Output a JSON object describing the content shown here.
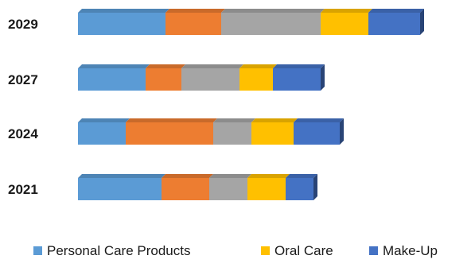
{
  "chart_data": {
    "type": "bar",
    "orientation": "horizontal",
    "stacked": true,
    "style_3d": true,
    "categories": [
      "2029",
      "2027",
      "2024",
      "2021"
    ],
    "series": [
      {
        "values": [
          110,
          85,
          60,
          105
        ],
        "color": "#5B9BD5"
      },
      {
        "values": [
          70,
          45,
          110,
          60
        ],
        "color": "#ED7D31"
      },
      {
        "values": [
          125,
          73,
          48,
          48
        ],
        "color": "#A5A5A5"
      },
      {
        "name": "Oral Care",
        "values": [
          60,
          42,
          53,
          48
        ],
        "color": "#FFC000"
      },
      {
        "values": [
          65,
          60,
          58,
          35
        ],
        "color": "#4472C4"
      }
    ],
    "legend": {
      "position": "bottom",
      "entries": [
        {
          "label": "Personal Care Products",
          "color": "#5B9BD5"
        },
        {
          "label": "Oral Care",
          "color": "#FFC000"
        },
        {
          "label": "Make-Up",
          "color": "#4472C4"
        }
      ]
    },
    "axis": {
      "x_visible": false,
      "grid": false
    }
  }
}
